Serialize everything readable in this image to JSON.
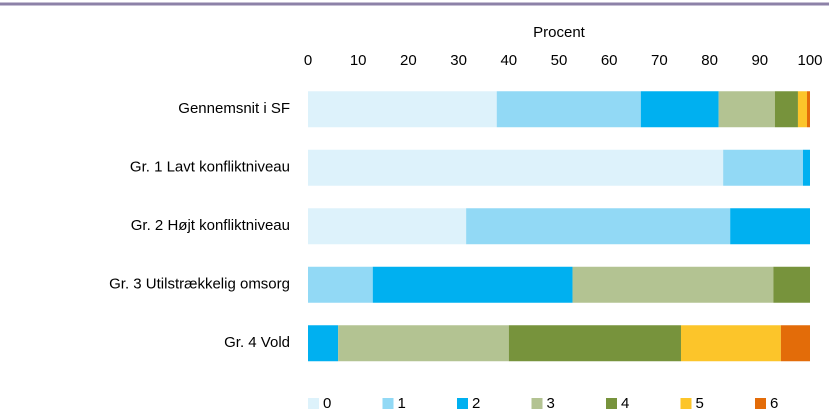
{
  "chart_data": {
    "type": "stacked_bar_horizontal",
    "x_label": "Procent",
    "categories": [
      "Gennemsnit i SF",
      "Gr. 1 Lavt konfliktniveau",
      "Gr. 2 Højt konfliktniveau",
      "Gr. 3 Utilstrækkelig omsorg",
      "Gr. 4 Vold"
    ],
    "series": [
      {
        "name": "0",
        "color": "#ddf2fb",
        "values": [
          37.6,
          82.7,
          31.5,
          0,
          0
        ]
      },
      {
        "name": "1",
        "color": "#92d9f5",
        "values": [
          28.7,
          15.9,
          52.6,
          12.9,
          0
        ]
      },
      {
        "name": "2",
        "color": "#00b0f0",
        "values": [
          15.5,
          1.4,
          15.9,
          39.8,
          6.0
        ]
      },
      {
        "name": "3",
        "color": "#b3c392",
        "values": [
          11.2,
          0,
          0,
          40.0,
          34.0
        ]
      },
      {
        "name": "4",
        "color": "#77933c",
        "values": [
          4.6,
          0,
          0,
          7.3,
          34.3
        ]
      },
      {
        "name": "5",
        "color": "#fcc52a",
        "values": [
          1.8,
          0,
          0,
          0,
          19.9
        ]
      },
      {
        "name": "6",
        "color": "#e36c09",
        "values": [
          0.6,
          0,
          0,
          0,
          5.8
        ]
      }
    ],
    "xlim": [
      0,
      100
    ],
    "xticks": [
      0,
      10,
      20,
      30,
      40,
      50,
      60,
      70,
      80,
      90,
      100
    ],
    "legend": "bottom"
  }
}
